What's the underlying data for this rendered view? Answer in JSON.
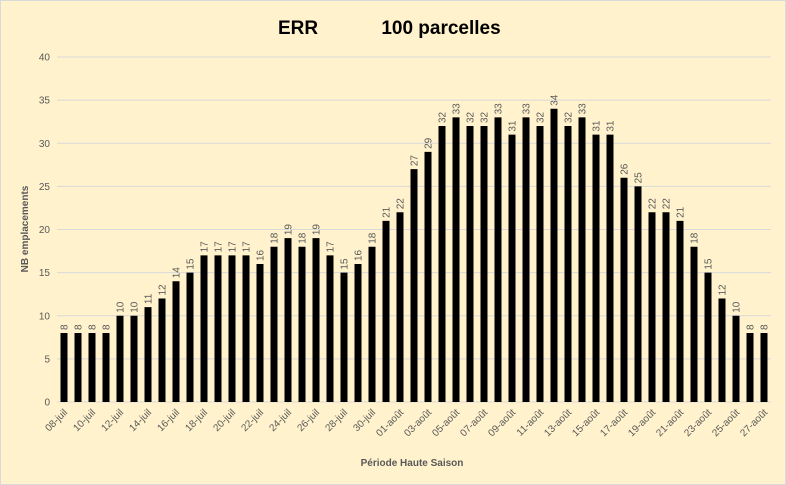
{
  "chart_data": {
    "type": "bar",
    "title_parts": [
      "ERR",
      "100 parcelles"
    ],
    "xlabel": "Période Haute Saison",
    "ylabel": "NB emplacements",
    "ylim": [
      0,
      40
    ],
    "yticks": [
      0,
      5,
      10,
      15,
      20,
      25,
      30,
      35,
      40
    ],
    "grid": "horizontal",
    "legend": "none",
    "categories": [
      "08-juil",
      "09-juil",
      "10-juil",
      "11-juil",
      "12-juil",
      "13-juil",
      "14-juil",
      "15-juil",
      "16-juil",
      "17-juil",
      "18-juil",
      "19-juil",
      "20-juil",
      "21-juil",
      "22-juil",
      "23-juil",
      "24-juil",
      "25-juil",
      "26-juil",
      "27-juil",
      "28-juil",
      "29-juil",
      "30-juil",
      "31-juil",
      "01-août",
      "02-août",
      "03-août",
      "04-août",
      "05-août",
      "06-août",
      "07-août",
      "08-août",
      "09-août",
      "10-août",
      "11-août",
      "12-août",
      "13-août",
      "14-août",
      "15-août",
      "16-août",
      "17-août",
      "18-août",
      "19-août",
      "20-août",
      "21-août",
      "22-août",
      "23-août",
      "24-août",
      "25-août",
      "26-août",
      "27-août"
    ],
    "values": [
      8,
      8,
      8,
      8,
      10,
      10,
      11,
      12,
      14,
      15,
      17,
      17,
      17,
      17,
      16,
      18,
      19,
      18,
      19,
      17,
      15,
      16,
      18,
      21,
      22,
      27,
      29,
      32,
      33,
      32,
      32,
      33,
      31,
      33,
      32,
      34,
      32,
      33,
      31,
      31,
      26,
      25,
      22,
      22,
      21,
      18,
      15,
      12,
      10,
      8,
      8
    ],
    "show_data_labels": true,
    "x_tick_labels_every": 2
  },
  "colors": {
    "background": "#fff2cc",
    "bar": "#000000",
    "gridline": "#d9d9d9",
    "text": "#595959",
    "title": "#000000"
  }
}
